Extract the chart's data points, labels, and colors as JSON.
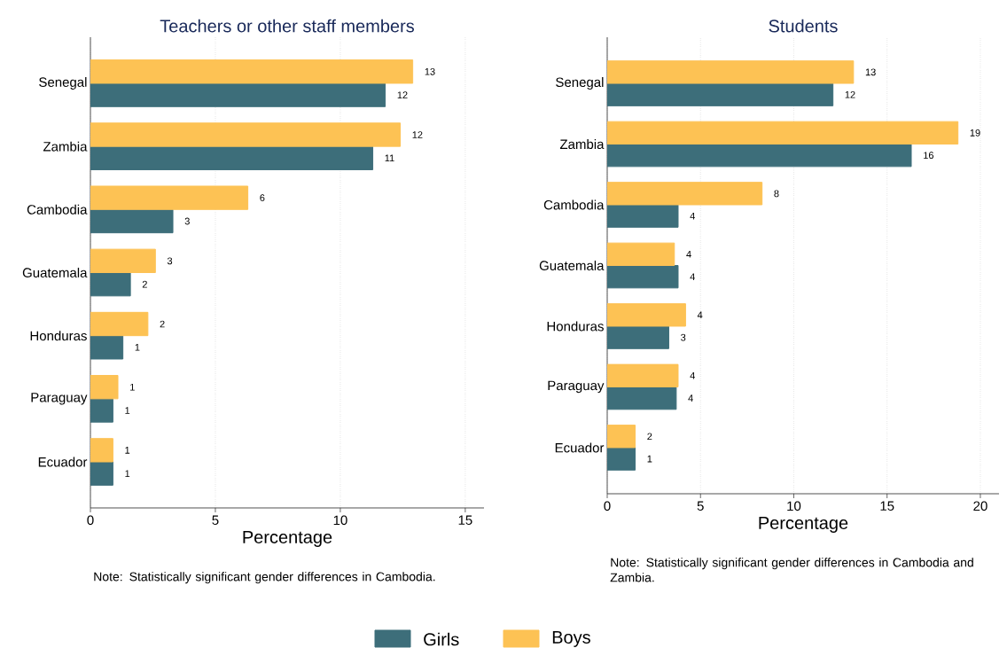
{
  "chart_data": [
    {
      "type": "bar",
      "orientation": "horizontal",
      "title": "Teachers or other staff members",
      "xlabel": "Percentage",
      "categories": [
        "Senegal",
        "Zambia",
        "Cambodia",
        "Guatemala",
        "Honduras",
        "Paraguay",
        "Ecuador"
      ],
      "series": [
        {
          "name": "Girls",
          "color": "#3d6e7a",
          "values": [
            11.8,
            11.3,
            3.3,
            1.6,
            1.3,
            0.9,
            0.9
          ],
          "value_labels": [
            "12",
            "11",
            "3",
            "2",
            "1",
            "1",
            "1"
          ]
        },
        {
          "name": "Boys",
          "color": "#fdc254",
          "values": [
            12.9,
            12.4,
            6.3,
            2.6,
            2.3,
            1.1,
            0.9
          ],
          "value_labels": [
            "13",
            "12",
            "6",
            "3",
            "2",
            "1",
            "1"
          ]
        }
      ],
      "xlim": [
        0,
        15.75
      ],
      "xticks": [
        0,
        5,
        10,
        15
      ],
      "grid": "x",
      "legend": "bottom",
      "annotations": [
        "Note: Statistically significant gender differences in Cambodia."
      ]
    },
    {
      "type": "bar",
      "orientation": "horizontal",
      "title": "Students",
      "xlabel": "Percentage",
      "categories": [
        "Senegal",
        "Zambia",
        "Cambodia",
        "Guatemala",
        "Honduras",
        "Paraguay",
        "Ecuador"
      ],
      "series": [
        {
          "color": "#3d6e7a",
          "values": [
            12.1,
            16.3,
            3.8,
            3.8,
            3.3,
            3.7,
            1.5
          ],
          "value_labels": [
            "12",
            "16",
            "4",
            "4",
            "3",
            "4",
            "1"
          ]
        },
        {
          "color": "#fdc254",
          "values": [
            13.2,
            18.8,
            8.3,
            3.6,
            4.2,
            3.8,
            1.5
          ],
          "value_labels": [
            "13",
            "19",
            "8",
            "4",
            "4",
            "4",
            "2"
          ]
        }
      ],
      "xlim": [
        0,
        21
      ],
      "xticks": [
        0,
        5,
        10,
        15,
        20
      ],
      "grid": "x",
      "annotations": [
        "Note: Statistically significant gender differences in Cambodia and Zambia."
      ]
    }
  ]
}
